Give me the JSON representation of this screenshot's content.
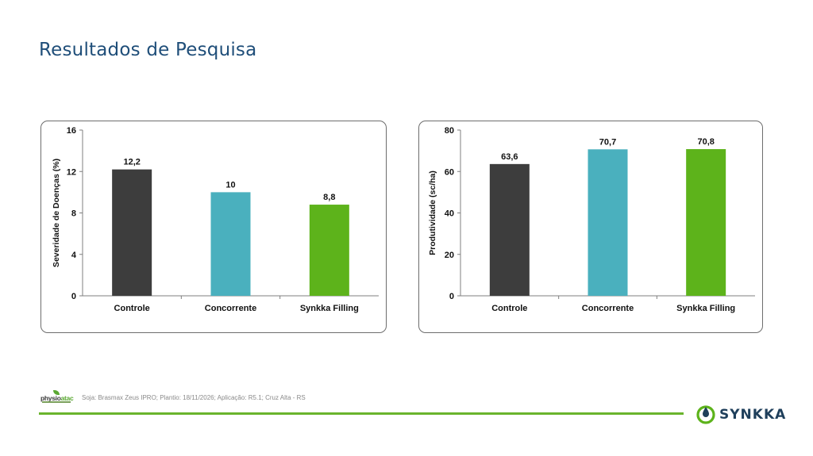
{
  "page": {
    "title": "Resultados de Pesquisa"
  },
  "footer": {
    "note": "Soja: Brasmax Zeus IPRO; Plantio: 18/11/2026; Aplicação: R5.1; Cruz Alta - RS",
    "partner_logo": {
      "text_main": "physio",
      "text_accent": "atac"
    },
    "brand": "SYNKKA"
  },
  "colors": {
    "title": "#1f4e79",
    "controle": "#3d3d3d",
    "concorrente": "#4ab0be",
    "synkka": "#5db31b",
    "accent_line": "#6ab42d",
    "brand_text": "#1f3f5b"
  },
  "chart_data": [
    {
      "type": "bar",
      "categories": [
        "Controle",
        "Concorrente",
        "Synkka Filling"
      ],
      "values": [
        12.2,
        10,
        8.8
      ],
      "data_labels": [
        "12,2",
        "10",
        "8,8"
      ],
      "colors": [
        "#3d3d3d",
        "#4ab0be",
        "#5db31b"
      ],
      "ylabel": "Severidade de Doenças (%)",
      "ylim": [
        0,
        16
      ],
      "yticks": [
        0,
        4,
        8,
        12,
        16
      ],
      "grid": false
    },
    {
      "type": "bar",
      "categories": [
        "Controle",
        "Concorrente",
        "Synkka Filling"
      ],
      "values": [
        63.6,
        70.7,
        70.8
      ],
      "data_labels": [
        "63,6",
        "70,7",
        "70,8"
      ],
      "colors": [
        "#3d3d3d",
        "#4ab0be",
        "#5db31b"
      ],
      "ylabel": "Produtividade (sc/ha)",
      "ylim": [
        0,
        80
      ],
      "yticks": [
        0,
        20,
        40,
        60,
        80
      ],
      "grid": false
    }
  ]
}
